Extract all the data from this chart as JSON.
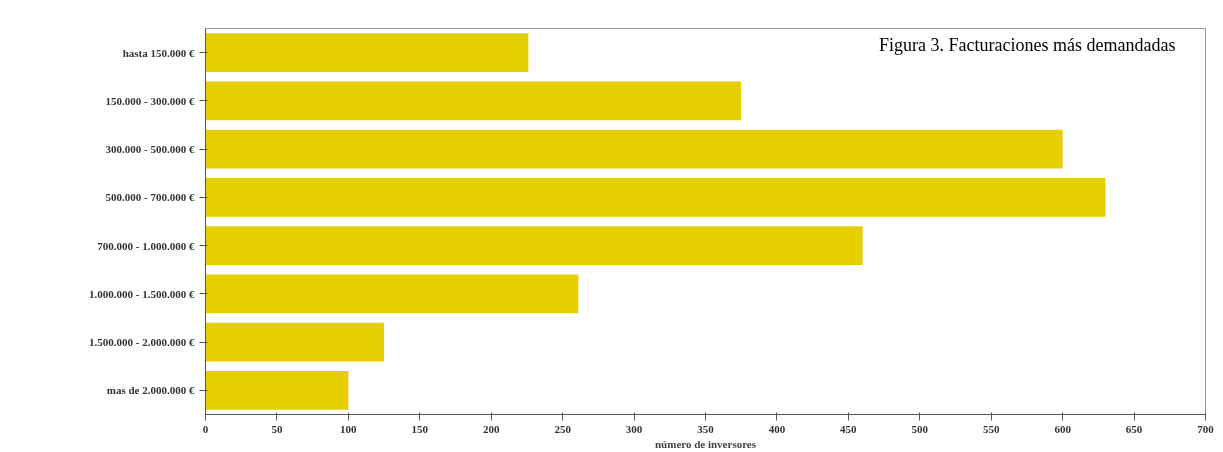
{
  "chart_data": {
    "type": "bar",
    "orientation": "horizontal",
    "title": "Figura 3. Facturaciones más demandadas",
    "xlabel": "número de inversores",
    "categories": [
      "hasta 150.000 €",
      "150.000 - 300.000 €",
      "300.000 - 500.000 €",
      "500.000 - 700.000 €",
      "700.000 - 1.000.000 €",
      "1.000.000 - 1.500.000 €",
      "1.500.000 - 2.000.000 €",
      "mas de 2.000.000 €"
    ],
    "values": [
      226,
      375,
      600,
      630,
      460,
      261,
      125,
      100
    ],
    "color": "#e5cf00",
    "xlim": [
      0,
      700
    ],
    "xticks": [
      0,
      50,
      100,
      150,
      200,
      250,
      300,
      350,
      400,
      450,
      500,
      550,
      600,
      650,
      700
    ],
    "grid": false
  }
}
